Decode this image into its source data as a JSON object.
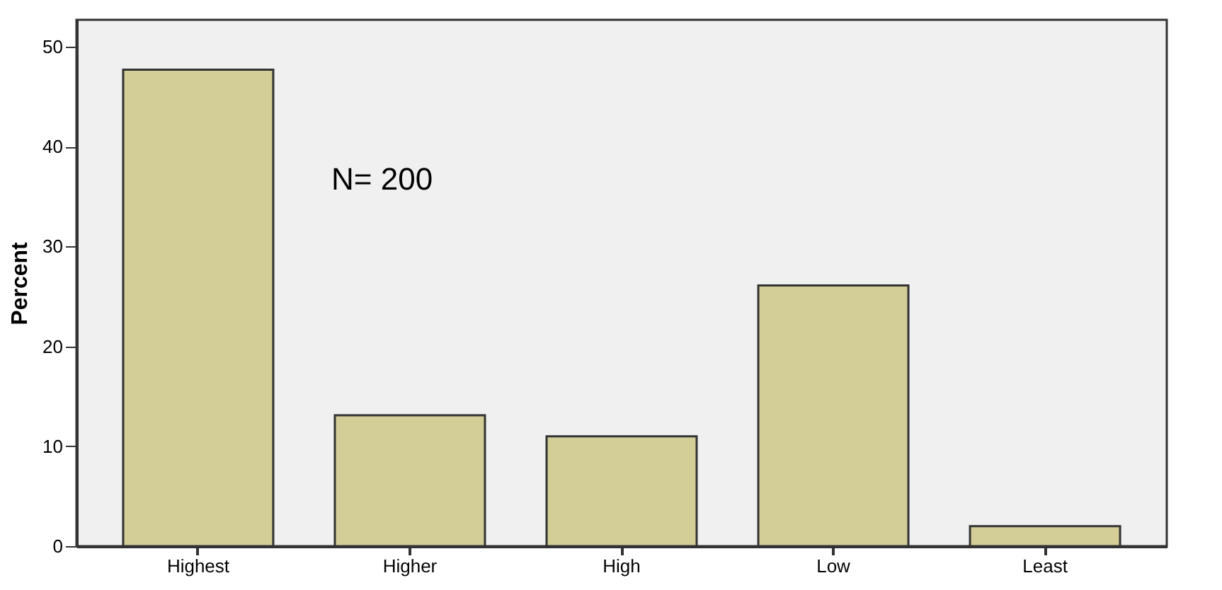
{
  "chart_data": {
    "type": "bar",
    "ylabel": "Percent",
    "categories": [
      "Highest",
      "Higher",
      "High",
      "Low",
      "Least"
    ],
    "values": [
      47.7,
      13.1,
      11.0,
      26.1,
      2.0
    ],
    "color": "#d3cd97",
    "ylim": [
      0,
      52.7
    ],
    "yticks": [
      0,
      10,
      20,
      30,
      40,
      50
    ],
    "grid": false,
    "annotations": [
      "N= 200"
    ]
  }
}
